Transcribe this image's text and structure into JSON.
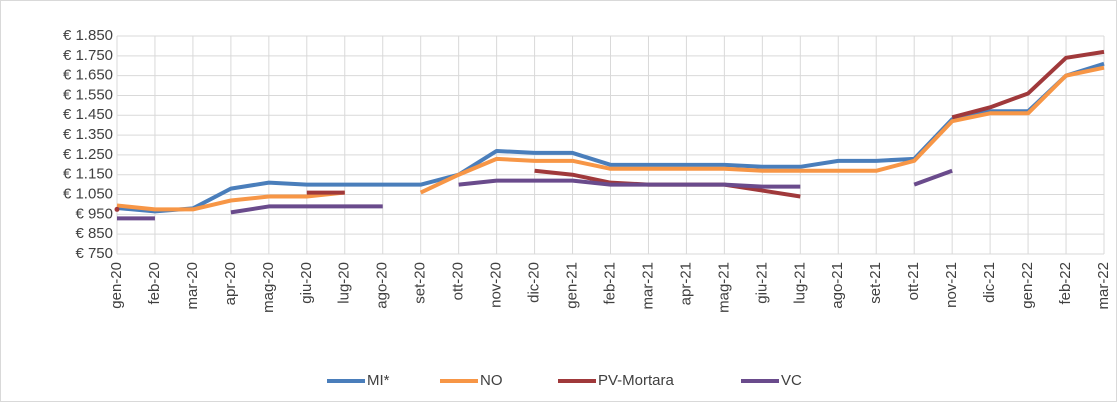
{
  "chart_data": {
    "type": "line",
    "categories": [
      "gen-20",
      "feb-20",
      "mar-20",
      "apr-20",
      "mag-20",
      "giu-20",
      "lug-20",
      "ago-20",
      "set-20",
      "ott-20",
      "nov-20",
      "dic-20",
      "gen-21",
      "feb-21",
      "mar-21",
      "apr-21",
      "mag-21",
      "giu-21",
      "lug-21",
      "ago-21",
      "set-21",
      "ott-21",
      "nov-21",
      "dic-21",
      "gen-22",
      "feb-22",
      "mar-22"
    ],
    "series": [
      {
        "name": "MI*",
        "color": "#4a7ebb",
        "values": [
          982,
          965,
          980,
          1080,
          1110,
          1100,
          1100,
          1100,
          1100,
          1150,
          1270,
          1260,
          1260,
          1200,
          1200,
          1200,
          1200,
          1190,
          1190,
          1220,
          1220,
          1230,
          1430,
          1470,
          1470,
          1650,
          1710
        ]
      },
      {
        "name": "NO",
        "color": "#f79646",
        "values": [
          995,
          975,
          975,
          1020,
          1040,
          1040,
          1060,
          null,
          1060,
          1150,
          1230,
          1220,
          1220,
          1180,
          1180,
          1180,
          1180,
          1170,
          1170,
          1170,
          1170,
          1220,
          1420,
          1460,
          1460,
          1650,
          1690
        ]
      },
      {
        "name": "PV-Mortara",
        "color": "#a0393b",
        "values": [
          975,
          null,
          null,
          null,
          null,
          1060,
          1060,
          null,
          null,
          null,
          null,
          1170,
          1150,
          1110,
          1100,
          1100,
          1100,
          1070,
          1040,
          null,
          null,
          null,
          1440,
          1490,
          1560,
          1740,
          1770
        ]
      },
      {
        "name": "VC",
        "color": "#6a4b8c",
        "values": [
          930,
          930,
          null,
          960,
          990,
          990,
          990,
          990,
          null,
          1100,
          1120,
          1120,
          1120,
          1100,
          1100,
          1100,
          1100,
          1090,
          1090,
          null,
          null,
          1100,
          1170,
          null,
          null,
          null,
          null
        ]
      }
    ],
    "ylim": [
      750,
      1850
    ],
    "yticks": [
      {
        "value": 750,
        "label": "€ 750"
      },
      {
        "value": 850,
        "label": "€ 850"
      },
      {
        "value": 950,
        "label": "€ 950"
      },
      {
        "value": 1050,
        "label": "€ 1.050"
      },
      {
        "value": 1150,
        "label": "€ 1.150"
      },
      {
        "value": 1250,
        "label": "€ 1.250"
      },
      {
        "value": 1350,
        "label": "€ 1.350"
      },
      {
        "value": 1450,
        "label": "€ 1.450"
      },
      {
        "value": 1550,
        "label": "€ 1.550"
      },
      {
        "value": 1650,
        "label": "€ 1.650"
      },
      {
        "value": 1750,
        "label": "€ 1.750"
      },
      {
        "value": 1850,
        "label": "€ 1.850"
      }
    ],
    "grid": true,
    "legend": "bottom"
  }
}
